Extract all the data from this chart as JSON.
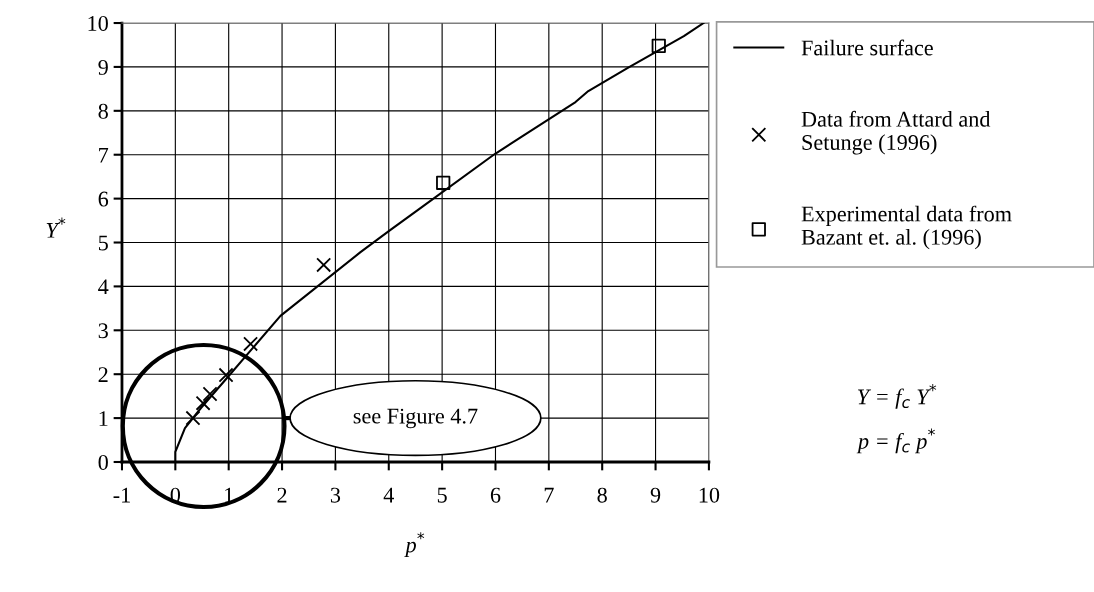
{
  "chart_data": {
    "type": "line",
    "xlabel": "p$^{*}$",
    "ylabel": "Y$^{*}$",
    "xlim": [
      -1,
      10
    ],
    "ylim": [
      0,
      10
    ],
    "xticks": [
      -1,
      0,
      1,
      2,
      3,
      4,
      5,
      6,
      7,
      8,
      9,
      10
    ],
    "yticks": [
      0,
      1,
      2,
      3,
      4,
      5,
      6,
      7,
      8,
      9,
      10
    ],
    "grid": true,
    "legend": "right",
    "series": [
      {
        "name": "Failure surface",
        "color": "#000000",
        "marker": "none",
        "line_style": "solid",
        "x": [
          0,
          0,
          0.18,
          0.48,
          1.0,
          1.97,
          3.47,
          4.0,
          4.6,
          5.98,
          6.5,
          7.5,
          7.74,
          8.48,
          9.53,
          9.9
        ],
        "values": [
          0,
          0.23,
          0.77,
          1.23,
          1.96,
          3.33,
          4.78,
          5.26,
          5.79,
          7.01,
          7.42,
          8.2,
          8.45,
          8.98,
          9.7,
          10.0
        ]
      },
      {
        "name": "Data from Attard and\nSetunge (1996)",
        "type": "scatter",
        "color": "#000000",
        "marker": "cross",
        "x": [
          0.33,
          0.52,
          0.65,
          0.95,
          1.41,
          2.78
        ],
        "values": [
          1.0,
          1.34,
          1.55,
          1.98,
          2.69,
          4.49
        ]
      },
      {
        "name": "Experimental data from\nBazant et. al. (1996)",
        "type": "scatter",
        "color": "#000000",
        "marker": "square",
        "x": [
          5.02,
          9.06
        ],
        "values": [
          6.36,
          9.48
        ]
      }
    ],
    "annotations": [
      "see Figure 4.7",
      "Y = f$_{c}$ Y$^{*}$",
      "p = f$_{c}$ p$^{*}$"
    ]
  }
}
